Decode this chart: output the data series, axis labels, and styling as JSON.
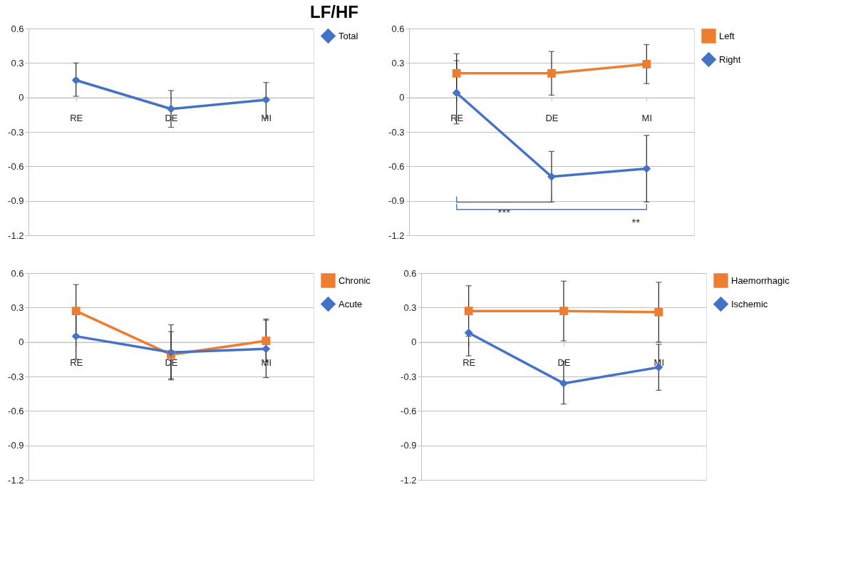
{
  "chart_data": [
    {
      "type": "line",
      "title": "LF/HF",
      "categories": [
        "RE",
        "DE",
        "MI"
      ],
      "ylim": [
        -1.2,
        0.6
      ],
      "yticks": [
        -1.2,
        -0.9,
        -0.6,
        -0.3,
        0,
        0.3,
        0.6
      ],
      "grid": "y",
      "legend": "right",
      "line_style": "solid",
      "series": [
        {
          "name": "Total",
          "color": "#4472c4",
          "marker": "diamond",
          "values": [
            0.15,
            -0.1,
            -0.02
          ],
          "errors": [
            [
              0.01,
              0.3
            ],
            [
              -0.26,
              0.06
            ],
            [
              -0.18,
              0.13
            ]
          ]
        }
      ]
    },
    {
      "type": "line",
      "categories": [
        "RE",
        "DE",
        "MI"
      ],
      "ylim": [
        -1.2,
        0.6
      ],
      "yticks": [
        -1.2,
        -0.9,
        -0.6,
        -0.3,
        0,
        0.3,
        0.6
      ],
      "grid": "y",
      "legend": "right",
      "line_style": "solid",
      "annotations": [
        "***",
        "**"
      ],
      "series": [
        {
          "name": "Left",
          "color": "#ed7d31",
          "marker": "square",
          "values": [
            0.21,
            0.21,
            0.29
          ],
          "errors": [
            [
              0.03,
              0.38
            ],
            [
              0.02,
              0.4
            ],
            [
              0.12,
              0.46
            ]
          ]
        },
        {
          "name": "Right",
          "color": "#4472c4",
          "marker": "diamond",
          "values": [
            0.04,
            -0.69,
            -0.62
          ],
          "errors": [
            [
              -0.23,
              0.32
            ],
            [
              -0.91,
              -0.47
            ],
            [
              -0.91,
              -0.33
            ]
          ]
        }
      ]
    },
    {
      "type": "line",
      "categories": [
        "RE",
        "DE",
        "MI"
      ],
      "ylim": [
        -1.2,
        0.6
      ],
      "yticks": [
        -1.2,
        -0.9,
        -0.6,
        -0.3,
        0,
        0.3,
        0.6
      ],
      "grid": "y",
      "legend": "right",
      "line_style": "solid",
      "series": [
        {
          "name": "Chronic",
          "color": "#ed7d31",
          "marker": "square",
          "values": [
            0.27,
            -0.11,
            0.01
          ],
          "errors": [
            [
              0.04,
              0.5
            ],
            [
              -0.33,
              0.15
            ],
            [
              -0.17,
              0.2
            ]
          ]
        },
        {
          "name": "Acute",
          "color": "#4472c4",
          "marker": "diamond",
          "values": [
            0.05,
            -0.09,
            -0.06
          ],
          "errors": [
            [
              -0.15,
              0.25
            ],
            [
              -0.32,
              0.09
            ],
            [
              -0.31,
              0.19
            ]
          ]
        }
      ]
    },
    {
      "type": "line",
      "categories": [
        "RE",
        "DE",
        "MI"
      ],
      "ylim": [
        -1.2,
        0.6
      ],
      "yticks": [
        -1.2,
        -0.9,
        -0.6,
        -0.3,
        0,
        0.3,
        0.6
      ],
      "grid": "y",
      "legend": "right",
      "line_style": "solid",
      "series": [
        {
          "name": "Haemorrhagic",
          "color": "#ed7d31",
          "marker": "square",
          "values": [
            0.27,
            0.27,
            0.26
          ],
          "errors": [
            [
              0.05,
              0.49
            ],
            [
              0.01,
              0.53
            ],
            [
              0.0,
              0.52
            ]
          ]
        },
        {
          "name": "Ischemic",
          "color": "#4472c4",
          "marker": "diamond",
          "values": [
            0.08,
            -0.36,
            -0.22
          ],
          "errors": [
            [
              -0.12,
              0.08
            ],
            [
              -0.54,
              -0.17
            ],
            [
              -0.42,
              -0.02
            ]
          ]
        }
      ]
    }
  ]
}
